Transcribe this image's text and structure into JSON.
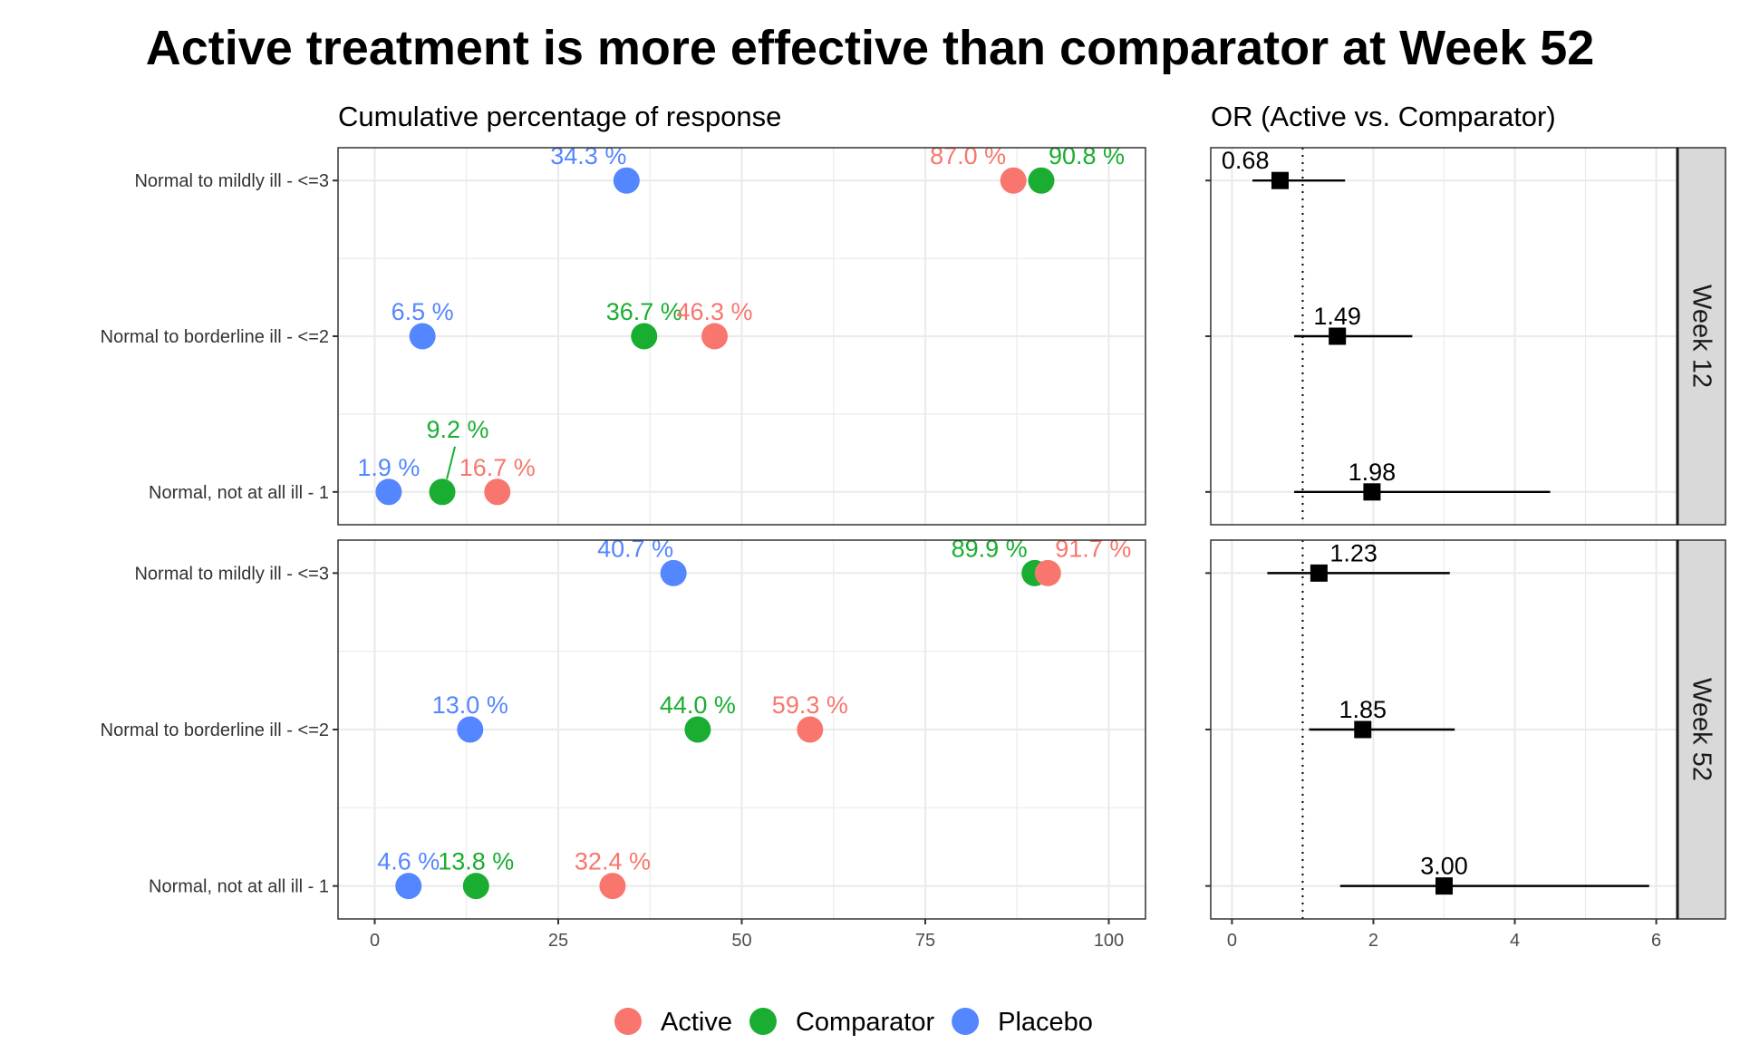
{
  "chart_data": {
    "type": "scatter",
    "title": "Active treatment is more effective than comparator at Week 52",
    "panels": {
      "left": {
        "subtitle": "Cumulative percentage of response",
        "xlim": [
          -5,
          105
        ],
        "xticks": [
          0,
          25,
          50,
          75,
          100
        ],
        "grid": true
      },
      "right": {
        "subtitle": "OR (Active vs. Comparator)",
        "xlim": [
          -0.3,
          6.3
        ],
        "xticks": [
          0,
          2,
          4,
          6
        ],
        "reference_line": 1,
        "grid": true
      }
    },
    "categories": [
      "Normal to mildly ill - <=3",
      "Normal to borderline ill - <=2",
      "Normal, not at all ill -   1"
    ],
    "series": [
      {
        "name": "Active",
        "color": "#F8766D"
      },
      {
        "name": "Comparator",
        "color": "#19AE31"
      },
      {
        "name": "Placebo",
        "color": "#5486FF"
      }
    ],
    "facets": [
      {
        "strip": "Week 12",
        "points": {
          "Normal to mildly ill - <=3": {
            "Active": 87.0,
            "Comparator": 90.8,
            "Placebo": 34.3
          },
          "Normal to borderline ill - <=2": {
            "Active": 46.3,
            "Comparator": 36.7,
            "Placebo": 6.5
          },
          "Normal, not at all ill -   1": {
            "Active": 16.7,
            "Comparator": 9.2,
            "Placebo": 1.9
          }
        },
        "labels": {
          "Normal to mildly ill - <=3": {
            "Active": "87.0 %",
            "Comparator": "90.8 %",
            "Placebo": "34.3 %"
          },
          "Normal to borderline ill - <=2": {
            "Active": "46.3 %",
            "Comparator": "36.7 %",
            "Placebo": "6.5 %"
          },
          "Normal, not at all ill -   1": {
            "Active": "16.7 %",
            "Comparator": "9.2 %",
            "Placebo": "1.9 %"
          }
        },
        "odds_ratios": [
          {
            "category": "Normal to mildly ill - <=3",
            "or": 0.68,
            "lower": 0.29,
            "upper": 1.6,
            "label": "0.68"
          },
          {
            "category": "Normal to borderline ill - <=2",
            "or": 1.49,
            "lower": 0.88,
            "upper": 2.55,
            "label": "1.49"
          },
          {
            "category": "Normal, not at all ill -   1",
            "or": 1.98,
            "lower": 0.88,
            "upper": 4.5,
            "label": "1.98"
          }
        ]
      },
      {
        "strip": "Week 52",
        "points": {
          "Normal to mildly ill - <=3": {
            "Active": 91.7,
            "Comparator": 89.9,
            "Placebo": 40.7
          },
          "Normal to borderline ill - <=2": {
            "Active": 59.3,
            "Comparator": 44.0,
            "Placebo": 13.0
          },
          "Normal, not at all ill -   1": {
            "Active": 32.4,
            "Comparator": 13.8,
            "Placebo": 4.6
          }
        },
        "labels": {
          "Normal to mildly ill - <=3": {
            "Active": "91.7 %",
            "Comparator": "89.9 %",
            "Placebo": "40.7 %"
          },
          "Normal to borderline ill - <=2": {
            "Active": "59.3 %",
            "Comparator": "44.0 %",
            "Placebo": "13.0 %"
          },
          "Normal, not at all ill -   1": {
            "Active": "32.4 %",
            "Comparator": "13.8 %",
            "Placebo": "4.6 %"
          }
        },
        "odds_ratios": [
          {
            "category": "Normal to mildly ill - <=3",
            "or": 1.23,
            "lower": 0.5,
            "upper": 3.08,
            "label": "1.23"
          },
          {
            "category": "Normal to borderline ill - <=2",
            "or": 1.85,
            "lower": 1.09,
            "upper": 3.15,
            "label": "1.85"
          },
          {
            "category": "Normal, not at all ill -   1",
            "or": 3.0,
            "lower": 1.53,
            "upper": 5.9,
            "label": "3.00"
          }
        ]
      }
    ],
    "legend": {
      "position": "bottom",
      "items": [
        "Active",
        "Comparator",
        "Placebo"
      ]
    }
  }
}
